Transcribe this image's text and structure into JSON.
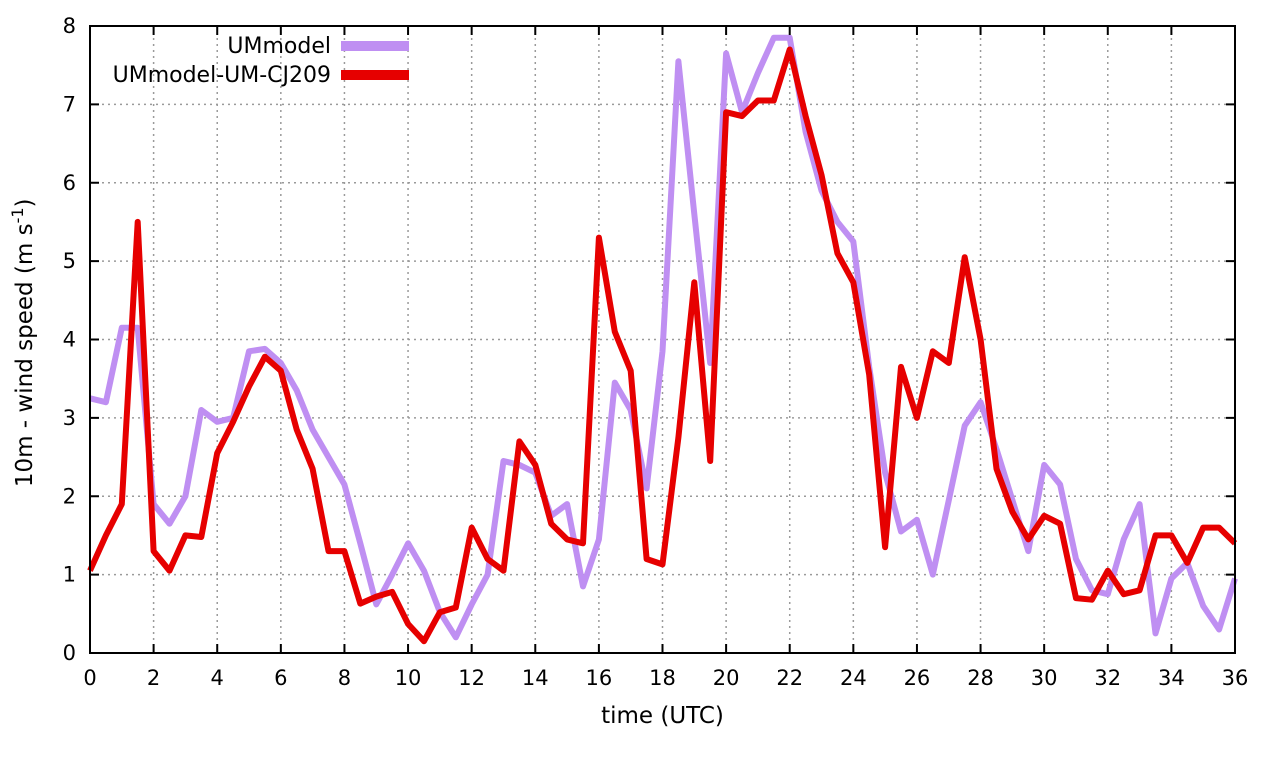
{
  "chart_data": {
    "type": "line",
    "xlabel": "time (UTC)",
    "ylabel_main": "10m - wind speed  (m s",
    "ylabel_sup": "-1",
    "ylabel_end": ")",
    "xlim": [
      0,
      36
    ],
    "ylim": [
      0,
      8
    ],
    "xticks": [
      0,
      2,
      4,
      6,
      8,
      10,
      12,
      14,
      16,
      18,
      20,
      22,
      24,
      26,
      28,
      30,
      32,
      34,
      36
    ],
    "yticks": [
      0,
      1,
      2,
      3,
      4,
      5,
      6,
      7,
      8
    ],
    "grid": "dotted",
    "legend_position": "top-left-inside",
    "x_start": 0,
    "x_step": 0.5,
    "series": [
      {
        "name": "UMmodel",
        "color": "#bf8ff2",
        "values": [
          3.25,
          3.2,
          4.15,
          4.15,
          1.9,
          1.65,
          2.0,
          3.1,
          2.95,
          3.0,
          3.85,
          3.88,
          3.7,
          3.35,
          2.85,
          2.5,
          2.15,
          1.4,
          0.62,
          1.0,
          1.4,
          1.05,
          0.52,
          0.2,
          0.62,
          1.0,
          2.45,
          2.4,
          2.3,
          1.75,
          1.9,
          0.85,
          1.45,
          3.45,
          3.1,
          2.1,
          3.85,
          7.55,
          5.6,
          3.7,
          7.65,
          6.9,
          7.4,
          7.85,
          7.85,
          6.65,
          5.9,
          5.5,
          5.25,
          3.65,
          2.3,
          1.55,
          1.7,
          1.0,
          1.95,
          2.9,
          3.2,
          2.6,
          1.95,
          1.3,
          2.4,
          2.15,
          1.2,
          0.8,
          0.75,
          1.45,
          1.9,
          0.25,
          0.95,
          1.15,
          0.6,
          0.3,
          0.95
        ]
      },
      {
        "name": "UMmodel-UM-CJ209",
        "color": "#e60000",
        "values": [
          1.05,
          1.5,
          1.9,
          5.5,
          1.3,
          1.05,
          1.5,
          1.48,
          2.55,
          2.95,
          3.4,
          3.78,
          3.6,
          2.85,
          2.35,
          1.3,
          1.3,
          0.63,
          0.72,
          0.78,
          0.37,
          0.15,
          0.52,
          0.58,
          1.6,
          1.2,
          1.05,
          2.7,
          2.4,
          1.65,
          1.45,
          1.4,
          5.3,
          4.1,
          3.6,
          1.2,
          1.13,
          2.75,
          4.73,
          2.45,
          6.9,
          6.85,
          7.05,
          7.05,
          7.7,
          6.85,
          6.1,
          5.1,
          4.73,
          3.55,
          1.35,
          3.65,
          3.0,
          3.85,
          3.7,
          5.05,
          4.0,
          2.35,
          1.8,
          1.45,
          1.75,
          1.65,
          0.7,
          0.68,
          1.05,
          0.75,
          0.8,
          1.5,
          1.5,
          1.15,
          1.6,
          1.6,
          1.4
        ]
      }
    ]
  },
  "colors": {
    "frame": "#000000",
    "grid": "#9a9a9a",
    "background": "#ffffff"
  }
}
